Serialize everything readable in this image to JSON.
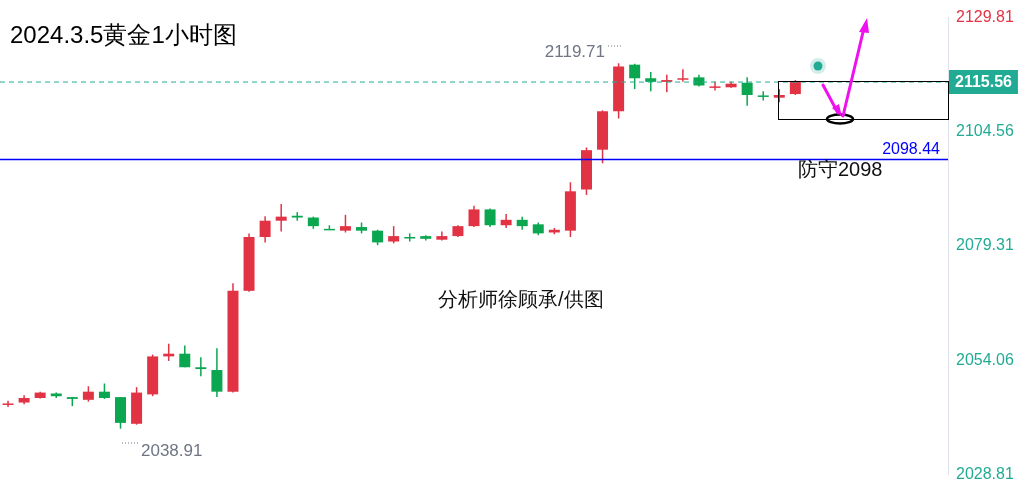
{
  "chart_data": {
    "type": "candlestick",
    "title": "2024.3.5黄金1小时图",
    "categories": [
      null,
      null,
      null,
      null,
      null,
      null,
      null,
      null,
      null,
      null,
      null,
      null,
      null,
      null,
      null,
      null,
      null,
      null,
      null,
      null,
      null,
      null,
      null,
      null,
      null,
      null,
      null,
      null,
      null,
      null,
      null,
      null,
      null,
      null,
      null,
      null,
      null,
      null,
      null,
      null,
      null,
      null,
      null,
      null,
      null,
      null,
      null,
      null,
      null,
      null,
      null,
      null,
      null,
      null,
      null,
      null,
      null,
      null,
      null
    ],
    "ohlc": [
      [
        2044.4,
        2045.1,
        2043.7,
        2044.5
      ],
      [
        2044.7,
        2046.3,
        2044.3,
        2045.7
      ],
      [
        2045.7,
        2047.1,
        2045.6,
        2046.9
      ],
      [
        2046.7,
        2046.9,
        2045.7,
        2046.1
      ],
      [
        2045.9,
        2045.9,
        2043.9,
        2045.5
      ],
      [
        2045.3,
        2048.3,
        2044.9,
        2047.1
      ],
      [
        2047.1,
        2048.9,
        2045.5,
        2045.7
      ],
      [
        2045.9,
        2045.9,
        2038.91,
        2040.2
      ],
      [
        2040.0,
        2048.1,
        2039.8,
        2046.9
      ],
      [
        2046.5,
        2055.3,
        2046.1,
        2054.9
      ],
      [
        2054.9,
        2057.7,
        2053.9,
        2055.5
      ],
      [
        2055.5,
        2057.3,
        2052.5,
        2052.5
      ],
      [
        2052.5,
        2054.7,
        2050.5,
        2052.1
      ],
      [
        2051.9,
        2056.7,
        2045.9,
        2047.1
      ],
      [
        2047.1,
        2071.1,
        2046.9,
        2069.4
      ],
      [
        2069.4,
        2082.1,
        2069.2,
        2081.3
      ],
      [
        2081.3,
        2085.9,
        2080.1,
        2084.9
      ],
      [
        2084.9,
        2088.6,
        2082.5,
        2085.8
      ],
      [
        2086.0,
        2086.8,
        2084.9,
        2085.6
      ],
      [
        2085.6,
        2085.8,
        2083.1,
        2083.7
      ],
      [
        2083.1,
        2083.9,
        2082.9,
        2083.0
      ],
      [
        2082.7,
        2086.2,
        2082.3,
        2083.7
      ],
      [
        2083.5,
        2084.5,
        2082.1,
        2082.7
      ],
      [
        2082.7,
        2082.9,
        2079.5,
        2080.1
      ],
      [
        2080.3,
        2083.7,
        2079.9,
        2081.5
      ],
      [
        2081.3,
        2082.1,
        2080.3,
        2081.1
      ],
      [
        2081.5,
        2081.7,
        2080.5,
        2080.9
      ],
      [
        2080.7,
        2082.5,
        2080.5,
        2081.5
      ],
      [
        2081.5,
        2083.9,
        2081.3,
        2083.7
      ],
      [
        2083.7,
        2088.2,
        2083.5,
        2087.4
      ],
      [
        2087.4,
        2087.6,
        2083.5,
        2083.9
      ],
      [
        2083.9,
        2086.4,
        2083.3,
        2085.1
      ],
      [
        2085.1,
        2085.8,
        2082.9,
        2083.7
      ],
      [
        2084.1,
        2084.5,
        2081.7,
        2082.1
      ],
      [
        2082.3,
        2083.3,
        2081.9,
        2082.9
      ],
      [
        2082.7,
        2093.4,
        2081.3,
        2091.4
      ],
      [
        2091.8,
        2101.1,
        2090.6,
        2100.5
      ],
      [
        2100.6,
        2109.3,
        2097.6,
        2109.1
      ],
      [
        2109.1,
        2119.71,
        2107.5,
        2119.0
      ],
      [
        2119.4,
        2119.6,
        2114.0,
        2116.4
      ],
      [
        2116.4,
        2117.8,
        2113.5,
        2115.6
      ],
      [
        2115.6,
        2117.2,
        2113.3,
        2116.0
      ],
      [
        2116.2,
        2118.4,
        2115.6,
        2116.4
      ],
      [
        2116.6,
        2117.2,
        2114.6,
        2114.8
      ],
      [
        2114.4,
        2115.6,
        2113.7,
        2114.6
      ],
      [
        2114.4,
        2115.6,
        2114.3,
        2115.2
      ],
      [
        2115.4,
        2116.6,
        2110.3,
        2112.7
      ],
      [
        2112.6,
        2113.5,
        2111.5,
        2112.5
      ],
      [
        2112.1,
        2114.0,
        2111.1,
        2112.7
      ],
      [
        2112.9,
        2116.0,
        2112.7,
        2115.56
      ],
      null,
      null,
      null,
      null,
      null,
      null,
      null,
      null,
      null
    ],
    "ylim": [
      2028.81,
      2129.81
    ],
    "yticks": [
      2028.81,
      2054.06,
      2079.31,
      2104.56,
      2129.81
    ],
    "tick_labels": "y",
    "grid": false,
    "ref_lines": [
      {
        "axis": "y",
        "value": 2115.56,
        "label": "2115.56",
        "color": "#22ab94",
        "line_style": "dashed"
      },
      {
        "axis": "y",
        "value": 2098.44,
        "label": "2098.44",
        "color": "#0000ff",
        "line_style": "solid"
      }
    ],
    "annotations": [
      "2119.71",
      "2038.91",
      "防守2098",
      "分析师徐顾承/供图"
    ]
  }
}
